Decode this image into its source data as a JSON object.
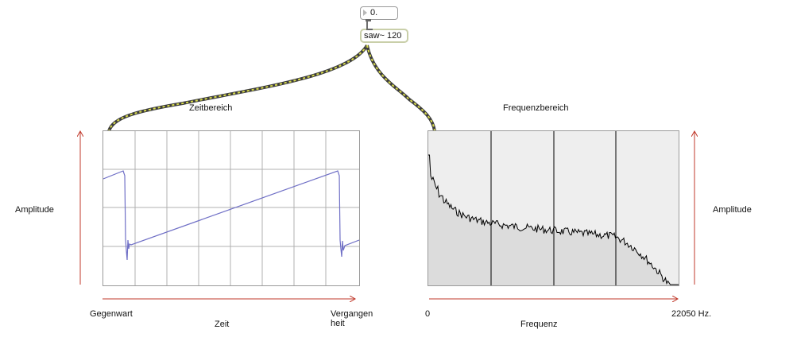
{
  "number_box": {
    "value": "0."
  },
  "object_box": {
    "text": "saw~ 120"
  },
  "time_domain": {
    "title": "Zeitbereich",
    "y_label": "Amplitude",
    "x_left_label": "Gegenwart",
    "x_center_label": "Zeit",
    "x_right_label_line1": "Vergangen",
    "x_right_label_line2": "heit",
    "trace_color": "#6f6fc6"
  },
  "frequency_domain": {
    "title": "Frequenzbereich",
    "y_label": "Amplitude",
    "x_left_label": "0",
    "x_center_label": "Frequenz",
    "x_right_label": "22050 Hz.",
    "marker_count": 3
  },
  "colors": {
    "arrow": "#c0392b",
    "wire_dark": "#3d3d3d",
    "wire_light": "#d6d94a",
    "spectrum_fill": "#dcdcdc",
    "spectrum_bg": "#efefef"
  }
}
